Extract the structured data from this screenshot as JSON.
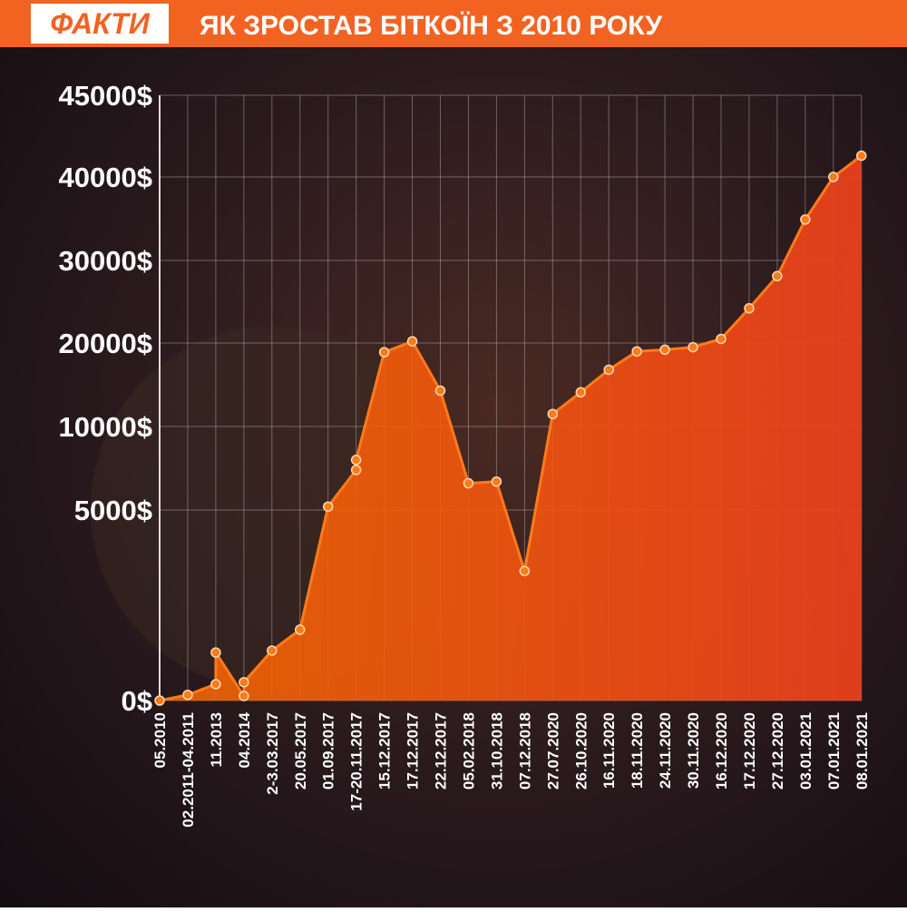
{
  "header": {
    "logo": "ФАКТИ"
  },
  "chart_data": {
    "type": "area",
    "title": "ЯК ЗРОСТАВ БІТКОЇН З 2010 РОКУ",
    "categories": [
      "05.2010",
      "02.2011-04.2011",
      "11.2013",
      null,
      "04.2014",
      null,
      "2-3.03.2017",
      "20.05.2017",
      "01.09.2017",
      "17-20.11.2017",
      null,
      "15.12.2017",
      "17.12.2017",
      "22.12.2017",
      "05.02.2018",
      "31.10.2018",
      "07.12.2018",
      "27.07.2020",
      "26.10.2020",
      "16.11.2020",
      "18.11.2020",
      "24.11.2020",
      "30.11.2020",
      "16.12.2020",
      "17.12.2020",
      "27.12.2020",
      "03.01.2021",
      "07.01.2021",
      "08.01.2021"
    ],
    "values": [
      0,
      150,
      430,
      1260,
      120,
      480,
      1310,
      1860,
      5200,
      7400,
      8000,
      18900,
      20200,
      14300,
      6600,
      6700,
      3400,
      11500,
      14100,
      16800,
      19000,
      19200,
      19500,
      20500,
      24200,
      28100,
      34900,
      40000,
      41300
    ],
    "color": "#ff7a1a",
    "ylim": [
      0,
      45000
    ],
    "yticks": [
      {
        "value": 0,
        "label": "0$"
      },
      {
        "value": 5000,
        "label": "5000$"
      },
      {
        "value": 10000,
        "label": "10000$"
      },
      {
        "value": 20000,
        "label": "20000$"
      },
      {
        "value": 30000,
        "label": "30000$"
      },
      {
        "value": 40000,
        "label": "40000$"
      },
      {
        "value": 45000,
        "label": "45000$"
      }
    ],
    "grid": true
  }
}
